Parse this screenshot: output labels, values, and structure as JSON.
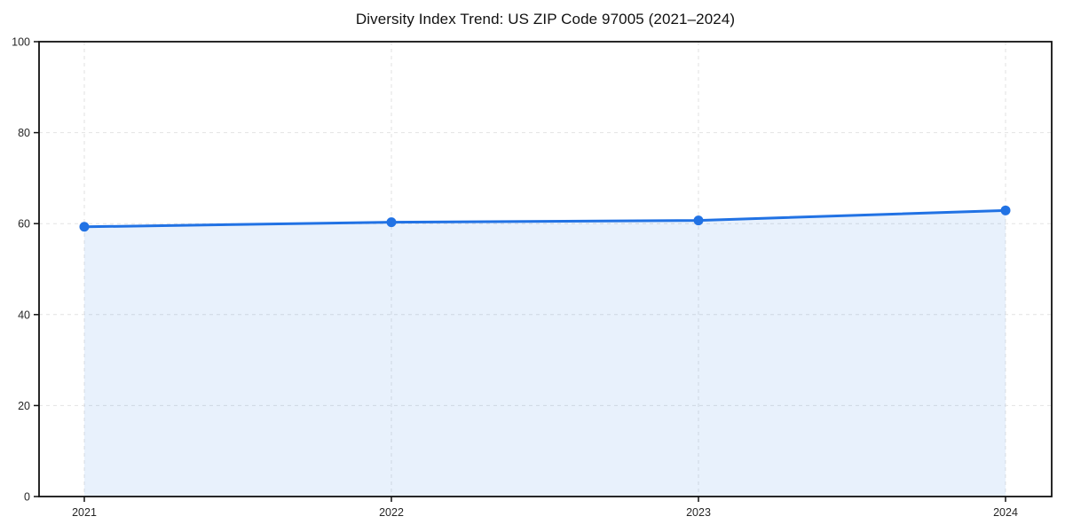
{
  "chart_data": {
    "type": "line",
    "title": "Diversity Index Trend: US ZIP Code 97005 (2021–2024)",
    "x": [
      2021,
      2022,
      2023,
      2024
    ],
    "categories": [
      "2021",
      "2022",
      "2023",
      "2024"
    ],
    "series": [
      {
        "name": "Diversity Index",
        "values": [
          59.3,
          60.3,
          60.7,
          62.9
        ]
      }
    ],
    "xlabel": "",
    "ylabel": "",
    "ylim": [
      0,
      100
    ],
    "yticks": [
      0,
      20,
      40,
      60,
      80,
      100
    ],
    "grid": "dashed, both axes",
    "legend_position": "none",
    "style": {
      "line_color": "#2172e4",
      "marker_color": "#2172e4",
      "fill_color": "rgba(33,114,228,0.10)",
      "grid_color": "#e2e2e2",
      "spine_color": "#111111",
      "tick_label_color": "#262626",
      "background": "#ffffff",
      "line_width": 3,
      "marker_radius": 5.5
    }
  }
}
